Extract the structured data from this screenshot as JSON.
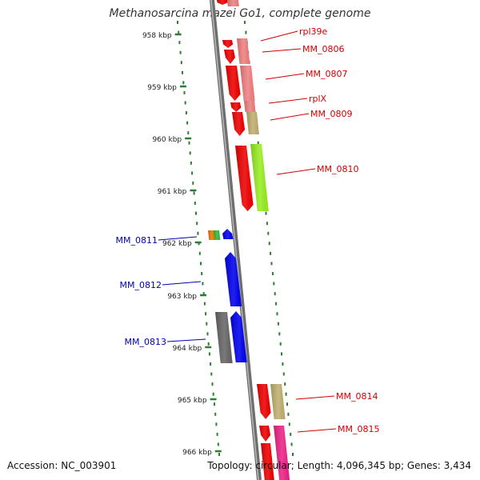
{
  "title": "Methanosarcina mazei Go1, complete genome",
  "footer": {
    "accession": "Accession: NC_003901",
    "summary": "Topology: circular; Length: 4,096,345 bp; Genes: 3,434"
  },
  "colors": {
    "backbone": "#8a8a8a",
    "ticks": "#2e7d32",
    "right_labels": "#d00000",
    "left_labels": "#0000b0",
    "red": "#ee0000",
    "salmon": "#ef8080",
    "olive": "#c0b070",
    "lime": "#99ee22",
    "blue": "#0000ee",
    "gray": "#666666",
    "magenta": "#ee2288",
    "orange": "#ee7700",
    "green": "#33bb33"
  },
  "ruler_labels": [
    "958 kbp",
    "959 kbp",
    "960 kbp",
    "961 kbp",
    "962 kbp",
    "963 kbp",
    "964 kbp",
    "965 kbp",
    "966 kbp"
  ],
  "right_features": [
    {
      "label": "rpl39e"
    },
    {
      "label": "MM_0806"
    },
    {
      "label": "MM_0807"
    },
    {
      "label": "rplX"
    },
    {
      "label": "MM_0809"
    },
    {
      "label": "MM_0810"
    },
    {
      "label": "MM_0814"
    },
    {
      "label": "MM_0815"
    }
  ],
  "left_features": [
    {
      "label": "MM_0811"
    },
    {
      "label": "MM_0812"
    },
    {
      "label": "MM_0813"
    }
  ]
}
